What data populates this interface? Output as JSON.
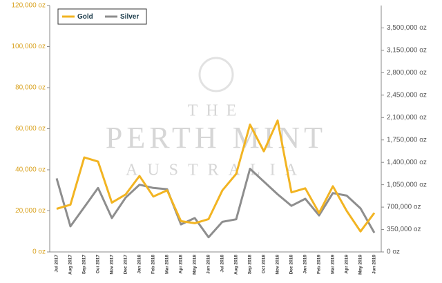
{
  "chart_data": {
    "type": "line",
    "watermark": [
      "THE",
      "PERTH MINT",
      "AUSTRALIA"
    ],
    "categories": [
      "Jul 2017",
      "Aug 2017",
      "Sep 2017",
      "Oct 2017",
      "Nov 2017",
      "Dec 2017",
      "Jan 2018",
      "Feb 2018",
      "Mar 2018",
      "Apr 2018",
      "May 2018",
      "Jun 2018",
      "Jul 2018",
      "Aug 2018",
      "Sep 2018",
      "Oct 2018",
      "Nov 2018",
      "Dec 2018",
      "Jan 2019",
      "Feb 2019",
      "Mar 2019",
      "Apr 2019",
      "May 2019",
      "Jun 2019"
    ],
    "series": [
      {
        "name": "Gold",
        "color": "#f2b422",
        "axis": "y",
        "values": [
          21000,
          23000,
          46000,
          44000,
          24000,
          28000,
          37000,
          27000,
          30000,
          15000,
          14000,
          16000,
          30000,
          38000,
          62000,
          49000,
          64000,
          29000,
          31000,
          19000,
          32000,
          20000,
          10000,
          19000
        ]
      },
      {
        "name": "Silver",
        "color": "#8e8e8e",
        "axis": "y2",
        "values": [
          1150000,
          400000,
          700000,
          1000000,
          530000,
          850000,
          1050000,
          1000000,
          980000,
          430000,
          530000,
          230000,
          470000,
          510000,
          1300000,
          1100000,
          900000,
          720000,
          830000,
          570000,
          920000,
          880000,
          680000,
          300000
        ]
      }
    ],
    "ylim": [
      0,
      120000
    ],
    "yticks": [
      {
        "value": 0,
        "label": "0 oz"
      },
      {
        "value": 20000,
        "label": "20,000 oz"
      },
      {
        "value": 40000,
        "label": "40,000 oz"
      },
      {
        "value": 60000,
        "label": "60,000 oz"
      },
      {
        "value": 80000,
        "label": "80,000 oz"
      },
      {
        "value": 100000,
        "label": "100,000 oz"
      },
      {
        "value": 120000,
        "label": "120,000 oz"
      }
    ],
    "y2lim": [
      0,
      3850000
    ],
    "y2ticks": [
      {
        "value": 0,
        "label": "0 oz"
      },
      {
        "value": 350000,
        "label": "350,000 oz"
      },
      {
        "value": 700000,
        "label": "700,000 oz"
      },
      {
        "value": 1050000,
        "label": "1,050,000 oz"
      },
      {
        "value": 1400000,
        "label": "1,400,000 oz"
      },
      {
        "value": 1750000,
        "label": "1,750,000 oz"
      },
      {
        "value": 2100000,
        "label": "2,100,000 oz"
      },
      {
        "value": 2450000,
        "label": "2,450,000 oz"
      },
      {
        "value": 2800000,
        "label": "2,800,000 oz"
      },
      {
        "value": 3150000,
        "label": "3,150,000 oz"
      },
      {
        "value": 3500000,
        "label": "3,500,000 oz"
      }
    ],
    "legend": "top-left"
  }
}
